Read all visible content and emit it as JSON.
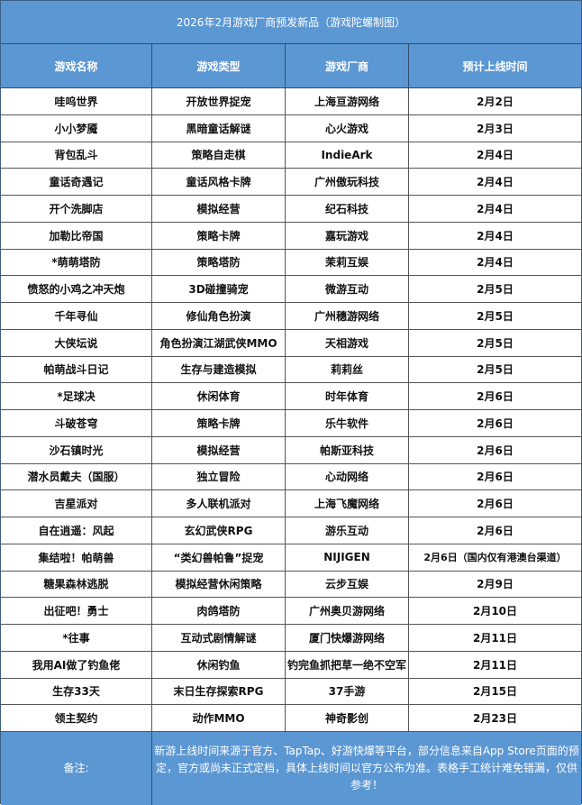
{
  "title": "2026年2月游戏厂商预发新品（游戏陀螺制图）",
  "headers": [
    "游戏名称",
    "游戏类型",
    "游戏厂商",
    "预计上线时间"
  ],
  "rows": [
    [
      "哇呜世界",
      "开放世界捉宠",
      "上海亘游网络",
      "2月2日"
    ],
    [
      "小小梦魇",
      "黑暗童话解谜",
      "心火游戏",
      "2月3日"
    ],
    [
      "背包乱斗",
      "策略自走棋",
      "IndieArk",
      "2月4日"
    ],
    [
      "童话奇遇记",
      "童话风格卡牌",
      "广州傲玩科技",
      "2月4日"
    ],
    [
      "开个洗脚店",
      "模拟经营",
      "纪石科技",
      "2月4日"
    ],
    [
      "加勒比帝国",
      "策略卡牌",
      "嘉玩游戏",
      "2月4日"
    ],
    [
      "*萌萌塔防",
      "策略塔防",
      "茉莉互娱",
      "2月4日"
    ],
    [
      "愤怒的小鸡之冲天炮",
      "3D碰撞骑宠",
      "微游互动",
      "2月5日"
    ],
    [
      "千年寻仙",
      "修仙角色扮演",
      "广州穗游网络",
      "2月5日"
    ],
    [
      "大侠坛说",
      "角色扮演江湖武侠MMO",
      "天相游戏",
      "2月5日"
    ],
    [
      "帕萌战斗日记",
      "生存与建造模拟",
      "莉莉丝",
      "2月5日"
    ],
    [
      "*足球决",
      "休闲体育",
      "时年体育",
      "2月6日"
    ],
    [
      "斗破苍穹",
      "策略卡牌",
      "乐牛软件",
      "2月6日"
    ],
    [
      "沙石镇时光",
      "模拟经营",
      "帕斯亚科技",
      "2月6日"
    ],
    [
      "潜水员戴夫（国服）",
      "独立冒险",
      "心动网络",
      "2月6日"
    ],
    [
      "吉星派对",
      "多人联机派对",
      "上海飞魔网络",
      "2月6日"
    ],
    [
      "自在逍遥：风起",
      "玄幻武侠RPG",
      "游乐互动",
      "2月6日"
    ],
    [
      "集结啦！帕萌兽",
      "“类幻兽帕鲁”捉宠",
      "NIJIGEN",
      "2月6日（国内仅有港澳台渠道）"
    ],
    [
      "糖果森林逃脱",
      "模拟经营休闲策略",
      "云步互娱",
      "2月9日"
    ],
    [
      "出征吧！勇士",
      "肉鸽塔防",
      "广州奥贝游网络",
      "2月10日"
    ],
    [
      "*往事",
      "互动式剧情解谜",
      "厦门快爆游网络",
      "2月11日"
    ],
    [
      "我用AI做了钓鱼佬",
      "休闲钓鱼",
      "钓完鱼抓把草一绝不空军",
      "2月11日"
    ],
    [
      "生存33天",
      "末日生存探索RPG",
      "37手游",
      "2月15日"
    ],
    [
      "领主契约",
      "动作MMO",
      "神奇影创",
      "2月23日"
    ]
  ],
  "footer": {
    "label": "备注:",
    "note": "新游上线时间来源于官方、TapTap、好游快爆等平台，部分信息来自App Store页面的预定，官方或尚未正式定档，具体上线时间以官方公布为准。表格手工统计难免错漏，仅供参考！"
  },
  "colors": {
    "header_bg": "#5b97d3",
    "border": "#555555"
  }
}
